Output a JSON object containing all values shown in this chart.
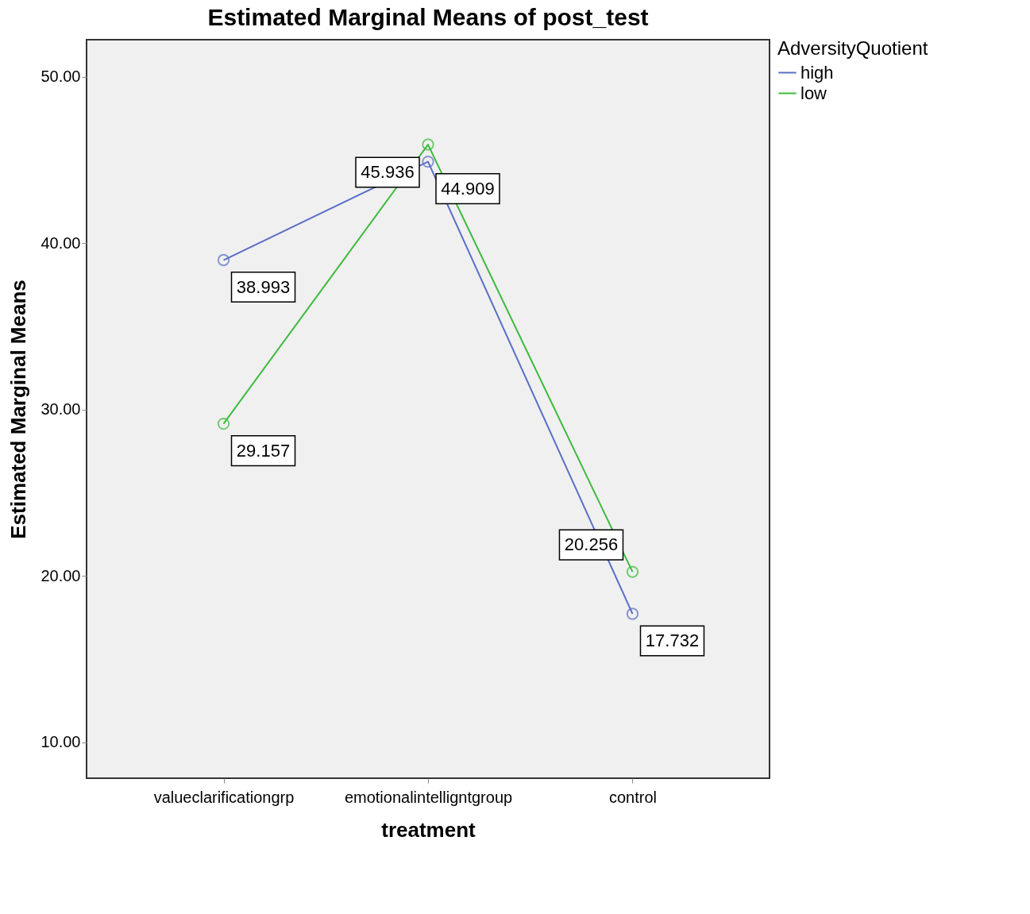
{
  "chart_data": {
    "type": "line",
    "title": "Estimated Marginal Means of post_test",
    "xlabel": "treatment",
    "ylabel": "Estimated Marginal Means",
    "legend_title": "AdversityQuotient",
    "categories": [
      "valueclarificationgrp",
      "emotionalintelligntgroup",
      "control"
    ],
    "series": [
      {
        "name": "high",
        "color": "#5a6ec6",
        "values": [
          38.993,
          44.909,
          17.732
        ]
      },
      {
        "name": "low",
        "color": "#3cba3c",
        "values": [
          29.157,
          45.936,
          20.256
        ]
      }
    ],
    "ylim": [
      7.85,
      52.24
    ],
    "yticks": [
      {
        "value": 10,
        "label": "10.00"
      },
      {
        "value": 20,
        "label": "20.00"
      },
      {
        "value": 30,
        "label": "30.00"
      },
      {
        "value": 40,
        "label": "40.00"
      },
      {
        "value": 50,
        "label": "50.00"
      }
    ],
    "data_labels": true,
    "grid": false,
    "legend": "top right",
    "marker": "circle",
    "line_style": "solid"
  }
}
